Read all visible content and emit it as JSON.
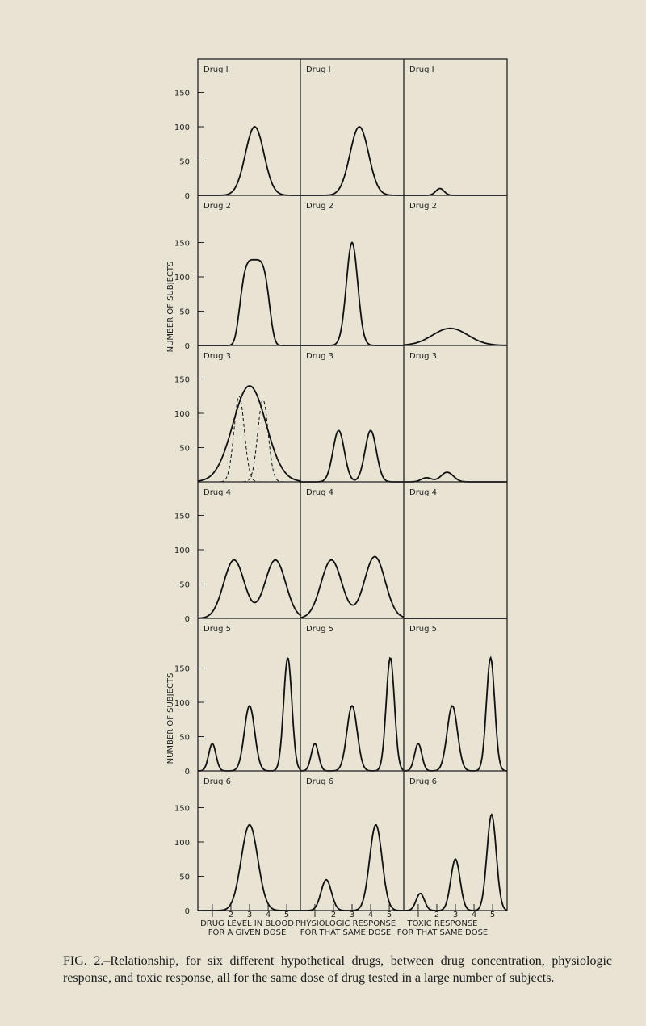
{
  "figure": {
    "rows": [
      {
        "labels": [
          "Drug I",
          "Drug I",
          "Drug I"
        ],
        "yticks": [
          "150",
          "100",
          "50",
          "0"
        ]
      },
      {
        "labels": [
          "Drug 2",
          "Drug 2",
          "Drug 2"
        ],
        "yticks": [
          "150",
          "100",
          "50",
          "0"
        ]
      },
      {
        "labels": [
          "Drug 3",
          "Drug 3",
          "Drug 3"
        ],
        "yticks": [
          "150",
          "100",
          "50"
        ]
      },
      {
        "labels": [
          "Drug 4",
          "Drug 4",
          "Drug 4"
        ],
        "yticks": [
          "150",
          "100",
          "50",
          "0"
        ]
      },
      {
        "labels": [
          "Drug 5",
          "Drug 5",
          "Drug 5"
        ],
        "yticks": [
          "150",
          "100",
          "50",
          "0"
        ]
      },
      {
        "labels": [
          "Drug 6",
          "Drug 6",
          "Drug 6"
        ],
        "yticks": [
          "150",
          "100",
          "50",
          "0"
        ]
      }
    ],
    "y_axis_title": "NUMBER OF SUBJECTS",
    "x_ticks": [
      "I",
      "2",
      "3",
      "4",
      "5"
    ],
    "columns": [
      [
        "DRUG LEVEL IN BLOOD",
        "FOR A GIVEN DOSE"
      ],
      [
        "PHYSIOLOGIC RESPONSE",
        "FOR THAT SAME DOSE"
      ],
      [
        "TOXIC RESPONSE",
        "FOR THAT SAME DOSE"
      ]
    ]
  },
  "caption": "FIG. 2.–Relationship, for six different hypothetical drugs, between drug concentration, physiologic response, and toxic response, all for the same dose of drug tested in a large number of subjects."
}
